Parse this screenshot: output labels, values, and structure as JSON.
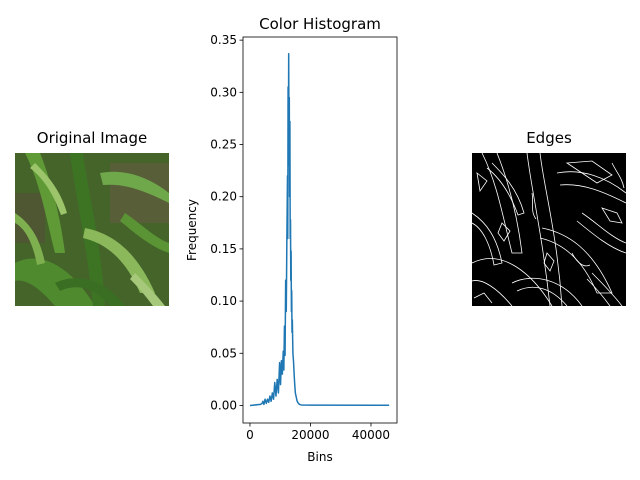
{
  "panels": {
    "left": {
      "title": "Original Image"
    },
    "right": {
      "title": "Edges"
    }
  },
  "colors": {
    "series": "#1f77b4",
    "leaf_dark": "#2f5a1c",
    "leaf_light": "#6fa84a",
    "soil": "#5a4a3a",
    "edge_line": "#ffffff",
    "edge_bg": "#000000"
  },
  "chart_data": {
    "type": "line",
    "title": "Color Histogram",
    "xlabel": "Bins",
    "ylabel": "Frequency",
    "xlim": [
      -2300,
      48600
    ],
    "ylim": [
      -0.0168,
      0.353
    ],
    "xticks": [
      0,
      20000,
      40000
    ],
    "yticks": [
      0.0,
      0.05,
      0.1,
      0.15,
      0.2,
      0.25,
      0.3,
      0.35
    ],
    "ytick_labels": [
      "0.00",
      "0.05",
      "0.10",
      "0.15",
      "0.20",
      "0.25",
      "0.30",
      "0.35"
    ],
    "grid": false,
    "series": [
      {
        "x": [
          0,
          3500,
          4000,
          4300,
          4600,
          5000,
          5400,
          5800,
          6200,
          6600,
          7000,
          7400,
          7800,
          8200,
          8600,
          9000,
          9400,
          9800,
          10100,
          10400,
          10700,
          11000,
          11200,
          11400,
          11600,
          11800,
          12000,
          12200,
          12400,
          12500,
          12600,
          12700,
          12800,
          12900,
          13000,
          13100,
          13200,
          13300,
          13400,
          13500,
          13600,
          13700,
          13800,
          13900,
          14000,
          14200,
          14400,
          14600,
          14800,
          15000,
          15300,
          15600,
          16000,
          16400,
          17000,
          20000,
          46000
        ],
        "y": [
          0.0,
          0.001,
          0.002,
          0.004,
          0.001,
          0.006,
          0.002,
          0.006,
          0.003,
          0.009,
          0.004,
          0.012,
          0.006,
          0.022,
          0.009,
          0.025,
          0.012,
          0.041,
          0.02,
          0.043,
          0.03,
          0.052,
          0.034,
          0.076,
          0.048,
          0.12,
          0.09,
          0.16,
          0.22,
          0.16,
          0.305,
          0.23,
          0.337,
          0.25,
          0.295,
          0.2,
          0.272,
          0.16,
          0.178,
          0.12,
          0.148,
          0.09,
          0.11,
          0.07,
          0.082,
          0.05,
          0.042,
          0.03,
          0.02,
          0.012,
          0.008,
          0.004,
          0.002,
          0.001,
          0.0005,
          0.0003,
          0.0002
        ]
      }
    ]
  }
}
